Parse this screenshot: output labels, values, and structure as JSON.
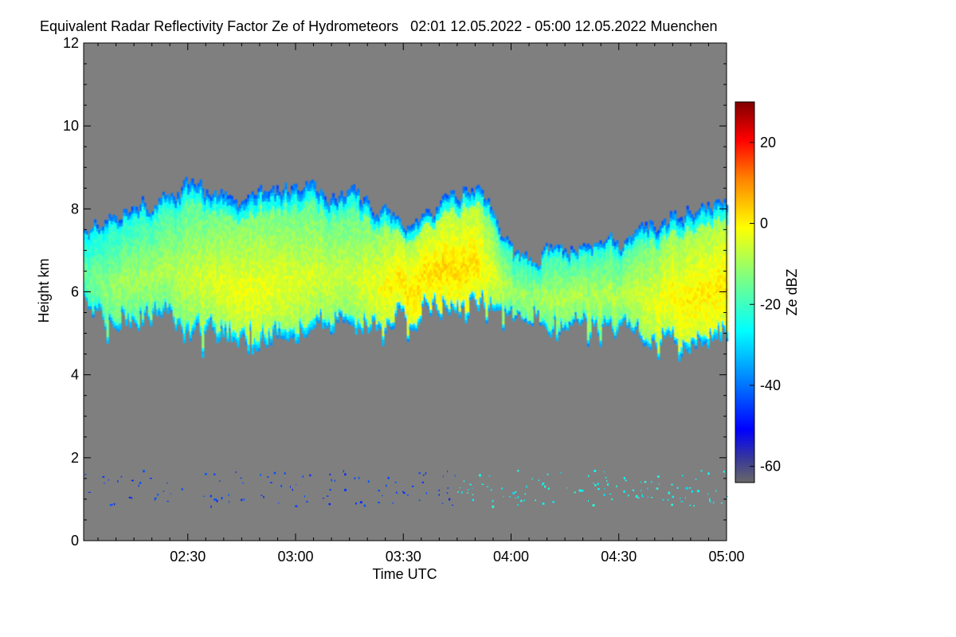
{
  "chart_data": {
    "type": "heatmap",
    "title": "Equivalent Radar Reflectivity Factor Ze of Hydrometeors   02:01 12.05.2022 - 05:00 12.05.2022 Muenchen",
    "xlabel": "Time UTC",
    "ylabel": "Height km",
    "x_unit": "minutes since 02:00 UTC",
    "xlim": [
      1,
      180
    ],
    "ylim": [
      0,
      12
    ],
    "x_ticks": [
      {
        "value": 30,
        "label": "02:30"
      },
      {
        "value": 60,
        "label": "03:00"
      },
      {
        "value": 90,
        "label": "03:30"
      },
      {
        "value": 120,
        "label": "04:00"
      },
      {
        "value": 150,
        "label": "04:30"
      },
      {
        "value": 180,
        "label": "05:00"
      }
    ],
    "y_ticks": [
      {
        "value": 0,
        "label": "0"
      },
      {
        "value": 2,
        "label": "2"
      },
      {
        "value": 4,
        "label": "4"
      },
      {
        "value": 6,
        "label": "6"
      },
      {
        "value": 8,
        "label": "8"
      },
      {
        "value": 10,
        "label": "10"
      },
      {
        "value": 12,
        "label": "12"
      }
    ],
    "colorbar": {
      "label": "Ze dBZ",
      "range": [
        -64,
        30
      ],
      "ticks": [
        {
          "value": 20,
          "label": "20"
        },
        {
          "value": 0,
          "label": "0"
        },
        {
          "value": -20,
          "label": "-20"
        },
        {
          "value": -40,
          "label": "-40"
        },
        {
          "value": -60,
          "label": "-60"
        }
      ]
    },
    "background_color": "#7f7f7f",
    "cloud_layer": {
      "description_points": [
        {
          "t": 1,
          "top": 7.4,
          "base": 6.0,
          "ze_core": -15
        },
        {
          "t": 10,
          "top": 7.9,
          "base": 5.2,
          "ze_core": -10
        },
        {
          "t": 25,
          "top": 8.3,
          "base": 5.4,
          "ze_core": -8
        },
        {
          "t": 30,
          "top": 8.5,
          "base": 5.0,
          "ze_core": -6
        },
        {
          "t": 45,
          "top": 8.2,
          "base": 4.9,
          "ze_core": -2
        },
        {
          "t": 60,
          "top": 8.5,
          "base": 5.1,
          "ze_core": -4
        },
        {
          "t": 75,
          "top": 8.3,
          "base": 5.3,
          "ze_core": -6
        },
        {
          "t": 90,
          "top": 7.6,
          "base": 5.3,
          "ze_core": 2
        },
        {
          "t": 100,
          "top": 8.0,
          "base": 5.7,
          "ze_core": 3
        },
        {
          "t": 110,
          "top": 8.6,
          "base": 5.7,
          "ze_core": 2
        },
        {
          "t": 120,
          "top": 6.8,
          "base": 5.4,
          "ze_core": -10
        },
        {
          "t": 135,
          "top": 7.0,
          "base": 5.2,
          "ze_core": -8
        },
        {
          "t": 150,
          "top": 7.1,
          "base": 5.0,
          "ze_core": -8
        },
        {
          "t": 165,
          "top": 7.8,
          "base": 4.8,
          "ze_core": 0
        },
        {
          "t": 180,
          "top": 8.2,
          "base": 4.9,
          "ze_core": 2
        }
      ]
    },
    "low_echoes": {
      "height_range_km": [
        0.6,
        2.2
      ],
      "early_color": "blue (about -45 dBZ)",
      "late_color": "cyan (about -25 dBZ)"
    }
  }
}
